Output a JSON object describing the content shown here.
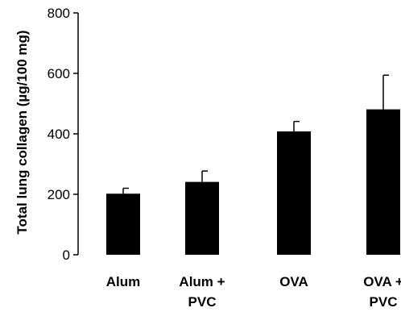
{
  "chart_data": {
    "type": "bar",
    "categories": [
      [
        "Alum"
      ],
      [
        "Alum +",
        "PVC"
      ],
      [
        "OVA"
      ],
      [
        "OVA +",
        "PVC"
      ]
    ],
    "values": [
      202,
      241,
      408,
      481
    ],
    "error_plus": [
      18,
      36,
      33,
      113
    ],
    "ylabel": "Total lung collagen (µg/100 mg)",
    "ylim": [
      0,
      800
    ],
    "yticks": [
      0,
      200,
      400,
      600,
      800
    ],
    "grid": false,
    "bar_color": "#000000"
  }
}
